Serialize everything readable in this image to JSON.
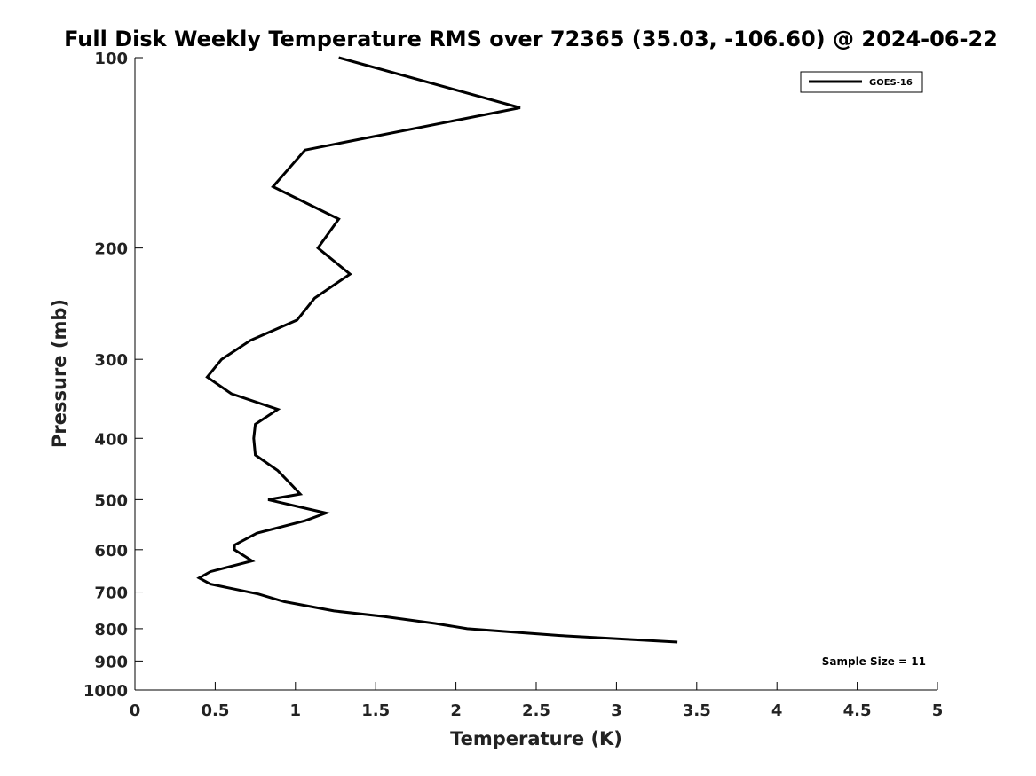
{
  "chart_data": {
    "type": "line",
    "title": "Full Disk Weekly Temperature RMS over 72365 (35.03, -106.60) @ 2024-06-22",
    "xlabel": "Temperature (K)",
    "ylabel": "Pressure (mb)",
    "xlim": [
      0,
      5
    ],
    "ylim": [
      1000,
      100
    ],
    "y_scale": "log",
    "x_ticks": [
      "0",
      "0.5",
      "1",
      "1.5",
      "2",
      "2.5",
      "3",
      "3.5",
      "4",
      "4.5",
      "5"
    ],
    "y_ticks": [
      "100",
      "200",
      "300",
      "400",
      "500",
      "600",
      "700",
      "800",
      "900",
      "1000"
    ],
    "grid": false,
    "legend_position": "top-right",
    "series": [
      {
        "name": "GOES-16",
        "color": "#000000",
        "points": [
          {
            "x": 1.27,
            "p": 100
          },
          {
            "x": 2.4,
            "p": 120
          },
          {
            "x": 1.06,
            "p": 140
          },
          {
            "x": 0.86,
            "p": 160
          },
          {
            "x": 1.27,
            "p": 180
          },
          {
            "x": 1.14,
            "p": 200
          },
          {
            "x": 1.34,
            "p": 220
          },
          {
            "x": 1.12,
            "p": 240
          },
          {
            "x": 1.01,
            "p": 260
          },
          {
            "x": 0.72,
            "p": 280
          },
          {
            "x": 0.54,
            "p": 300
          },
          {
            "x": 0.45,
            "p": 320
          },
          {
            "x": 0.6,
            "p": 340
          },
          {
            "x": 0.89,
            "p": 360
          },
          {
            "x": 0.75,
            "p": 380
          },
          {
            "x": 0.74,
            "p": 400
          },
          {
            "x": 0.75,
            "p": 425
          },
          {
            "x": 0.89,
            "p": 450
          },
          {
            "x": 0.98,
            "p": 475
          },
          {
            "x": 1.03,
            "p": 490
          },
          {
            "x": 0.83,
            "p": 500
          },
          {
            "x": 1.19,
            "p": 525
          },
          {
            "x": 1.06,
            "p": 540
          },
          {
            "x": 0.76,
            "p": 565
          },
          {
            "x": 0.62,
            "p": 590
          },
          {
            "x": 0.62,
            "p": 600
          },
          {
            "x": 0.73,
            "p": 625
          },
          {
            "x": 0.47,
            "p": 650
          },
          {
            "x": 0.4,
            "p": 665
          },
          {
            "x": 0.47,
            "p": 680
          },
          {
            "x": 0.77,
            "p": 705
          },
          {
            "x": 0.93,
            "p": 725
          },
          {
            "x": 1.24,
            "p": 750
          },
          {
            "x": 1.55,
            "p": 765
          },
          {
            "x": 1.87,
            "p": 785
          },
          {
            "x": 2.07,
            "p": 800
          },
          {
            "x": 2.64,
            "p": 820
          },
          {
            "x": 3.38,
            "p": 840
          }
        ]
      }
    ],
    "annotations": [
      "Sample Size = 11"
    ]
  }
}
